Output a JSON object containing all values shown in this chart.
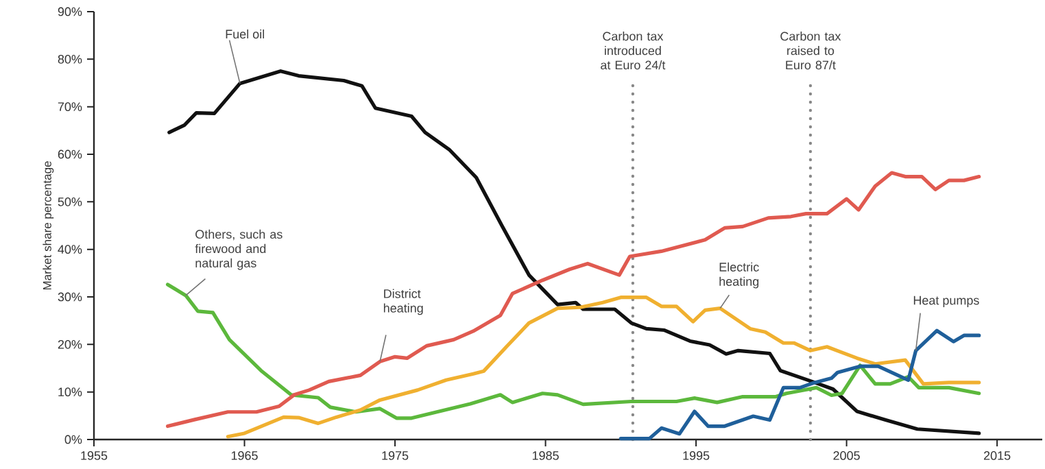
{
  "chart_data": {
    "type": "line",
    "ylabel": "Market share percentage",
    "xlim": [
      1955,
      2018
    ],
    "ylim": [
      0,
      90
    ],
    "xticks": [
      1955,
      1965,
      1975,
      1985,
      1995,
      2005,
      2015
    ],
    "yticks": [
      {
        "value": 0,
        "label": "0%"
      },
      {
        "value": 10,
        "label": "10%"
      },
      {
        "value": 20,
        "label": "20%"
      },
      {
        "value": 30,
        "label": "30%"
      },
      {
        "value": 40,
        "label": "40%"
      },
      {
        "value": 50,
        "label": "50%"
      },
      {
        "value": 60,
        "label": "60%"
      },
      {
        "value": 70,
        "label": "70%"
      },
      {
        "value": 80,
        "label": "80%"
      },
      {
        "value": 90,
        "label": "90%"
      }
    ],
    "series": [
      {
        "name": "Fuel oil",
        "color": "#111111",
        "x": [
          1960,
          1961,
          1961.8,
          1963,
          1964.7,
          1967.4,
          1968.6,
          1971.6,
          1972.8,
          1973.7,
          1976.1,
          1977,
          1978.6,
          1980.4,
          1982.1,
          1983.9,
          1985.8,
          1987,
          1987.5,
          1989.6,
          1990.7,
          1991.7,
          1992.9,
          1994.6,
          1995.9,
          1997,
          1997.8,
          1999.9,
          2000.6,
          2002.7,
          2004.1,
          2005.7,
          2007.6,
          2009.7,
          2013.8
        ],
        "values": [
          64.6,
          66.1,
          68.7,
          68.6,
          74.9,
          77.5,
          76.5,
          75.5,
          74.4,
          69.7,
          68,
          64.6,
          61,
          55.1,
          45,
          34.6,
          28.4,
          28.8,
          27.4,
          27.4,
          24.5,
          23.3,
          23,
          20.7,
          19.9,
          18,
          18.7,
          18.1,
          14.5,
          12.2,
          10.6,
          5.9,
          4.1,
          2.2,
          1.3
        ]
      },
      {
        "name": "Others, such as firewood and natural gas",
        "color": "#5cb83c",
        "x": [
          1959.9,
          1961.1,
          1961.9,
          1962.9,
          1964,
          1966.1,
          1968.1,
          1969.9,
          1970.7,
          1972.4,
          1974,
          1975.1,
          1976.1,
          1980,
          1982,
          1982.8,
          1984.8,
          1985.8,
          1987.5,
          1990.7,
          1993.7,
          1994.9,
          1996.4,
          1998.1,
          2000.3,
          2001,
          2003,
          2004,
          2004.7,
          2005.9,
          2006.9,
          2007.9,
          2009.1,
          2009.8,
          2011.8,
          2013.8
        ],
        "values": [
          32.6,
          30.3,
          27,
          26.7,
          21,
          14.5,
          9.4,
          8.8,
          6.8,
          5.8,
          6.5,
          4.5,
          4.5,
          7.5,
          9.4,
          7.8,
          9.7,
          9.4,
          7.4,
          8,
          8,
          8.7,
          7.8,
          9,
          9,
          9.7,
          10.9,
          9.3,
          9.7,
          15.6,
          11.7,
          11.7,
          13.2,
          10.9,
          10.9,
          9.7
        ]
      },
      {
        "name": "District heating",
        "color": "#e05a50",
        "x": [
          1959.9,
          1961.7,
          1963.9,
          1965.8,
          1967.3,
          1968.3,
          1969.3,
          1970.6,
          1972.7,
          1974,
          1975,
          1975.8,
          1977.1,
          1978.9,
          1980.2,
          1982,
          1982.8,
          1984.8,
          1986.6,
          1987.8,
          1989.9,
          1990.6,
          1992.7,
          1995.6,
          1996.9,
          1998.1,
          1999.8,
          2001.3,
          2002.3,
          2003.7,
          2005,
          2005.8,
          2006.9,
          2008,
          2008.9,
          2010,
          2010.9,
          2011.8,
          2012.8,
          2013.8
        ],
        "values": [
          2.8,
          4.2,
          5.8,
          5.8,
          7,
          9.4,
          10.4,
          12.2,
          13.5,
          16.4,
          17.4,
          17.1,
          19.7,
          21,
          22.8,
          26.1,
          30.7,
          33.5,
          35.8,
          37,
          34.6,
          38.5,
          39.6,
          42,
          44.5,
          44.8,
          46.6,
          46.9,
          47.5,
          47.5,
          50.6,
          48.3,
          53.3,
          56.1,
          55.3,
          55.3,
          52.6,
          54.5,
          54.5,
          55.3
        ]
      },
      {
        "name": "Electric heating",
        "color": "#f0b030",
        "x": [
          1963.9,
          1965,
          1967.6,
          1968.6,
          1969.9,
          1971.1,
          1972.7,
          1974,
          1976.5,
          1978.4,
          1980.2,
          1980.9,
          1982.4,
          1983.9,
          1985.8,
          1987.3,
          1988.8,
          1990,
          1991.7,
          1992.7,
          1993.7,
          1994.8,
          1995.6,
          1996.6,
          1998.6,
          1999.6,
          2000.8,
          2001.5,
          2002.6,
          2003.7,
          2005.7,
          2006.9,
          2008.9,
          2010.1,
          2011.8,
          2013.8
        ],
        "values": [
          0.6,
          1.3,
          4.7,
          4.6,
          3.4,
          4.7,
          6.2,
          8.3,
          10.4,
          12.5,
          13.8,
          14.4,
          19.5,
          24.5,
          27.6,
          27.8,
          28.8,
          29.9,
          29.9,
          28,
          28,
          24.8,
          27.2,
          27.6,
          23.3,
          22.6,
          20.3,
          20.3,
          18.7,
          19.5,
          17.1,
          15.9,
          16.7,
          11.7,
          12,
          12
        ]
      },
      {
        "name": "Heat pumps",
        "color": "#1f5f9a",
        "x": [
          1990,
          1991.9,
          1992.7,
          1993.9,
          1994.9,
          1995.8,
          1996.9,
          1998.8,
          1999.9,
          2000.8,
          2001.9,
          2002.8,
          2004,
          2004.4,
          2005.9,
          2007.1,
          2009.1,
          2009.6,
          2011,
          2012.1,
          2012.8,
          2013.8
        ],
        "values": [
          0.2,
          0.2,
          2.4,
          1.2,
          5.9,
          2.8,
          2.8,
          4.9,
          4.1,
          10.9,
          10.9,
          11.9,
          12.9,
          14.1,
          15.4,
          15.4,
          12.5,
          18.7,
          22.9,
          20.6,
          21.9,
          21.9
        ]
      }
    ],
    "ref_lines": [
      {
        "axis": "x",
        "value": 1990.8,
        "label": "Carbon tax introduced at Euro 24/t",
        "color": "#888888",
        "line_style": "dotted"
      },
      {
        "axis": "x",
        "value": 2002.6,
        "label": "Carbon tax raised to Euro 87/t",
        "color": "#888888",
        "line_style": "dotted"
      }
    ]
  }
}
